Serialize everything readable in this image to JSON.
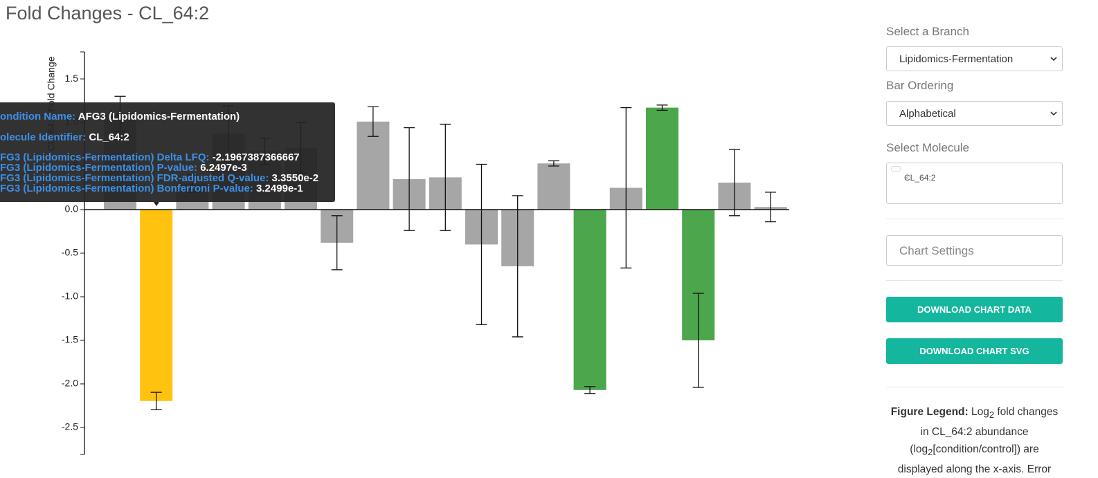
{
  "header": {
    "title": "Fold Changes - CL_64:2"
  },
  "chart_data": {
    "type": "bar",
    "y_label": "CL_64:2 Fold Change",
    "values": [
      1.1,
      -2.1967,
      0.3,
      0.87,
      0.67,
      0.71,
      -0.38,
      1.01,
      0.35,
      0.37,
      -0.4,
      -0.65,
      0.53,
      -2.07,
      0.25,
      1.17,
      -1.5,
      0.31,
      0.03
    ],
    "errors": [
      0.2,
      0.1,
      0.1,
      0.32,
      0.15,
      0.29,
      0.31,
      0.17,
      0.59,
      0.61,
      0.92,
      0.81,
      0.03,
      0.04,
      0.92,
      0.03,
      0.54,
      0.38,
      0.17
    ],
    "colors": [
      "#a6a6a6",
      "#ffc20e",
      "#a6a6a6",
      "#a6a6a6",
      "#a6a6a6",
      "#a6a6a6",
      "#a6a6a6",
      "#a6a6a6",
      "#a6a6a6",
      "#a6a6a6",
      "#a6a6a6",
      "#a6a6a6",
      "#a6a6a6",
      "#4ca64c",
      "#a6a6a6",
      "#4ca64c",
      "#4ca64c",
      "#a6a6a6",
      "#a6a6a6"
    ],
    "ylim": [
      -2.81,
      1.81
    ],
    "yticks": [
      {
        "value": -2.5,
        "label": "-2.5"
      },
      {
        "value": -2,
        "label": "-2.0"
      },
      -1.5,
      {
        "value": -1,
        "label": "-1.0"
      },
      -0.5,
      {
        "value": 0,
        "label": "0.0"
      },
      0.5,
      {
        "value": 1,
        "label": "1.0"
      },
      1.5
    ]
  },
  "tooltip": {
    "rows": [
      {
        "label": "ondition Name:",
        "value": "AFG3 (Lipidomics-Fermentation)"
      },
      {
        "label": "olecule Identifier:",
        "value": "CL_64:2"
      },
      {
        "label": "FG3 (Lipidomics-Fermentation) Delta LFQ:",
        "value": "-2.1967387366667"
      },
      {
        "label": "FG3 (Lipidomics-Fermentation) P-value:",
        "value": "6.2497e-3"
      },
      {
        "label": "FG3 (Lipidomics-Fermentation) FDR-adjusted Q-value:",
        "value": "3.3550e-2"
      },
      {
        "label": "FG3 (Lipidomics-Fermentation) Bonferroni P-value:",
        "value": "3.2499e-1"
      }
    ]
  },
  "sidebar": {
    "branch_label": "Select a Branch",
    "branch_value": "Lipidomics-Fermentation",
    "ordering_label": "Bar Ordering",
    "ordering_value": "Alphabetical",
    "molecule_label": "Select Molecule",
    "molecule_chip": "CL_64:2",
    "chip_remove": "×",
    "settings": "Chart Settings",
    "download_data": "DOWNLOAD CHART DATA",
    "download_svg": "DOWNLOAD CHART SVG",
    "legend": {
      "bold": "Figure Legend:",
      "t1": "Log",
      "s1": "2",
      "t2": "fold changes in CL_64:2 abundance (log",
      "s2": "2",
      "t3": "[condition/control]) are displayed along the x-axis. Error"
    }
  }
}
